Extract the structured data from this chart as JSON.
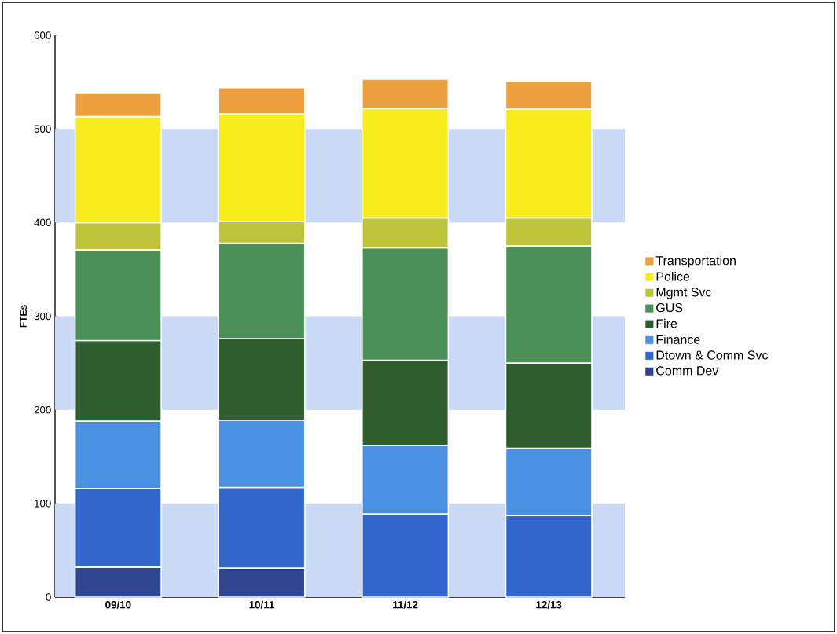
{
  "chart_data": {
    "type": "bar",
    "stacked": true,
    "ylabel": "FTEs",
    "categories": [
      "09/10",
      "10/11",
      "11/12",
      "12/13"
    ],
    "series": [
      {
        "name": "Comm Dev",
        "color": "#2f4590",
        "values": [
          32,
          31,
          null,
          null
        ]
      },
      {
        "name": "Dtown & Comm Svc",
        "color": "#3366cc",
        "values": [
          84,
          86,
          89,
          87
        ]
      },
      {
        "name": "Finance",
        "color": "#4a90e0",
        "values": [
          72,
          72,
          73,
          72
        ]
      },
      {
        "name": "Fire",
        "color": "#2e5e2e",
        "values": [
          86,
          87,
          91,
          91
        ]
      },
      {
        "name": "GUS",
        "color": "#4a8f55",
        "values": [
          97,
          102,
          120,
          125
        ]
      },
      {
        "name": "Mgmt Svc",
        "color": "#bdc43a",
        "values": [
          29,
          23,
          32,
          30
        ]
      },
      {
        "name": "Police",
        "color": "#f8ec1c",
        "values": [
          113,
          115,
          117,
          116
        ]
      },
      {
        "name": "Transportation",
        "color": "#eda040",
        "values": [
          25,
          28,
          31,
          30
        ]
      }
    ],
    "ylim": [
      0,
      600
    ],
    "yticks": [
      0,
      100,
      200,
      300,
      400,
      500,
      600
    ],
    "bands": [
      {
        "axis": "y",
        "from": 0,
        "to": 100,
        "color": "#c9d9f6"
      },
      {
        "axis": "y",
        "from": 200,
        "to": 300,
        "color": "#c9d9f6"
      },
      {
        "axis": "y",
        "from": 400,
        "to": 500,
        "color": "#c9d9f6"
      }
    ],
    "legend": "right"
  }
}
